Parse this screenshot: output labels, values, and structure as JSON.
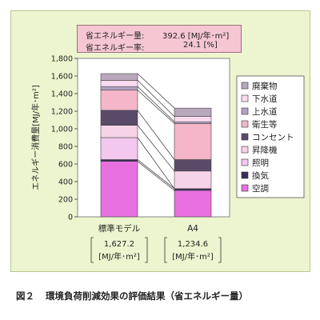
{
  "summary": {
    "saving_label": "省エネルギー量:",
    "saving_value": "392.6 [MJ/年･m²]",
    "rate_label": "省エネルギー率:",
    "rate_value": "24.1 [%]"
  },
  "caption": {
    "number": "図２",
    "text": "環境負荷削減効果の評価結果（省エネルギー量）"
  },
  "chart_data": {
    "type": "bar",
    "stacked": true,
    "categories": [
      "標準モデル",
      "A4"
    ],
    "category_totals": [
      "1,627.2",
      "1,234.6"
    ],
    "category_units": "[MJ/年･m²]",
    "ylabel": "エネルギー消費量[MJ/年･m²]",
    "ylim": [
      0,
      1800
    ],
    "yticks": [
      0,
      200,
      400,
      600,
      800,
      1000,
      1200,
      1400,
      1600,
      1800
    ],
    "ytick_labels": [
      "0",
      "200",
      "400",
      "600",
      "800",
      "1,000",
      "1,200",
      "1,400",
      "1,600",
      "1,800"
    ],
    "grid": false,
    "legend_position": "right",
    "series": [
      {
        "name": "空調",
        "color": "#e86fe0",
        "values": [
          630,
          300
        ]
      },
      {
        "name": "換気",
        "color": "#3a2c58",
        "values": [
          20,
          20
        ]
      },
      {
        "name": "照明",
        "color": "#f3c8ef",
        "values": [
          250,
          0
        ]
      },
      {
        "name": "昇降機",
        "color": "#f7d3e8",
        "values": [
          140,
          200
        ]
      },
      {
        "name": "コンセント",
        "color": "#5a4a68",
        "values": [
          170,
          130
        ]
      },
      {
        "name": "衛生等",
        "color": "#f4b6c8",
        "values": [
          230,
          410
        ]
      },
      {
        "name": "上水道",
        "color": "#b6a2c2",
        "values": [
          40,
          20
        ]
      },
      {
        "name": "下水道",
        "color": "#fadaf0",
        "values": [
          70,
          60
        ]
      },
      {
        "name": "廃棄物",
        "color": "#b8a8bc",
        "values": [
          77,
          95
        ]
      }
    ]
  }
}
